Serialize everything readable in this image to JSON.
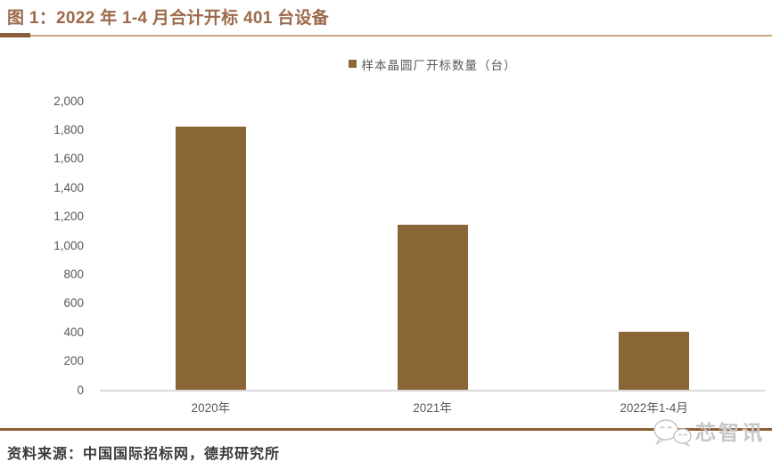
{
  "colors": {
    "title": "#9c6a4c",
    "bar": "#8a6535",
    "axis_text": "#595959",
    "axis_line": "#d9d9d9",
    "header_rule_thick": "#8b5e3c",
    "header_rule_thin": "#c9a87e",
    "footer_rule": "#8f5f33",
    "logo": "#c6c6c6",
    "source_text": "#3a3a3a"
  },
  "header": {
    "title": "图 1：2022 年 1-4 月合计开标 401 台设备"
  },
  "chart_data": {
    "type": "bar",
    "title": "图 1：2022 年 1-4 月合计开标 401 台设备",
    "legend": [
      "样本晶圆厂开标数量（台）"
    ],
    "legend_position": "top-center",
    "categories": [
      "2020年",
      "2021年",
      "2022年1-4月"
    ],
    "values": [
      1820,
      1140,
      401
    ],
    "xlabel": "",
    "ylabel": "",
    "ylim": [
      0,
      2000
    ],
    "ytick_step": 200,
    "ytick_labels": [
      "0",
      "200",
      "400",
      "600",
      "800",
      "1,000",
      "1,200",
      "1,400",
      "1,600",
      "1,800",
      "2,000"
    ],
    "grid": false,
    "bar_color": "#8a6535"
  },
  "footer": {
    "source": "资料来源：中国国际招标网，德邦研究所",
    "logo_text": "芯智讯"
  }
}
